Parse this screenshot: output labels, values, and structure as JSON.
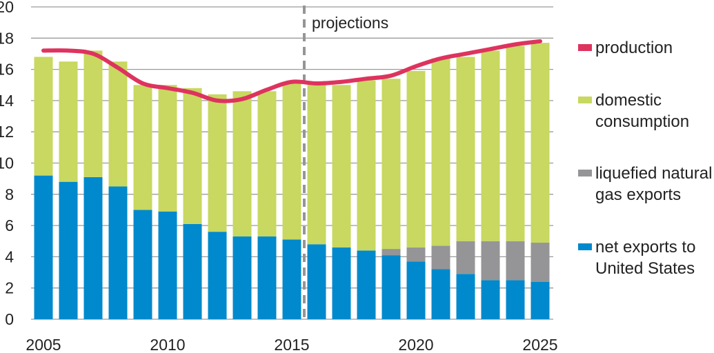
{
  "chart_data": {
    "type": "bar",
    "stacked": true,
    "x": [
      2005,
      2006,
      2007,
      2008,
      2009,
      2010,
      2011,
      2012,
      2013,
      2014,
      2015,
      2016,
      2017,
      2018,
      2019,
      2020,
      2021,
      2022,
      2023,
      2024,
      2025
    ],
    "x_tick_labels": [
      "2005",
      "2010",
      "2015",
      "2020",
      "2025"
    ],
    "y_tick_labels": [
      "0",
      "2",
      "4",
      "6",
      "8",
      "10",
      "12",
      "14",
      "16",
      "18",
      "20"
    ],
    "ylim": [
      0,
      20
    ],
    "grid": true,
    "legend_position": "right",
    "annotation": "projections",
    "projection_start": 2015.5,
    "series": [
      {
        "name": "net exports to\nUnited States",
        "kind": "bar",
        "color": "#0089CC",
        "values": [
          9.2,
          8.8,
          9.1,
          8.5,
          7.0,
          6.9,
          6.1,
          5.6,
          5.3,
          5.3,
          5.1,
          4.8,
          4.6,
          4.4,
          4.1,
          3.7,
          3.2,
          2.9,
          2.5,
          2.5,
          2.4
        ]
      },
      {
        "name": "liquefied natural\ngas exports",
        "kind": "bar",
        "color": "#959597",
        "values": [
          0,
          0,
          0,
          0,
          0,
          0,
          0,
          0,
          0,
          0,
          0,
          0,
          0,
          0,
          0.4,
          0.9,
          1.5,
          2.1,
          2.5,
          2.5,
          2.5
        ]
      },
      {
        "name": "domestic\nconsumption",
        "kind": "bar",
        "color": "#C8D860",
        "values": [
          7.6,
          7.7,
          8.1,
          8.0,
          8.0,
          8.1,
          8.7,
          8.8,
          9.3,
          9.3,
          10.0,
          10.2,
          10.4,
          10.9,
          10.9,
          11.3,
          12.0,
          11.8,
          12.2,
          12.5,
          12.8
        ]
      },
      {
        "name": "production",
        "kind": "line",
        "color": "#DE335E",
        "values": [
          17.2,
          17.2,
          17.0,
          16.1,
          15.1,
          14.8,
          14.5,
          14.0,
          14.1,
          14.7,
          15.2,
          15.1,
          15.2,
          15.4,
          15.6,
          16.2,
          16.7,
          17.0,
          17.3,
          17.6,
          17.8
        ]
      }
    ]
  },
  "legend": [
    {
      "label": "production",
      "color": "#DE335E"
    },
    {
      "label": "domestic\nconsumption",
      "color": "#C8D860"
    },
    {
      "label": "liquefied natural\ngas exports",
      "color": "#959597"
    },
    {
      "label": "net exports to\nUnited States",
      "color": "#0089CC"
    }
  ]
}
